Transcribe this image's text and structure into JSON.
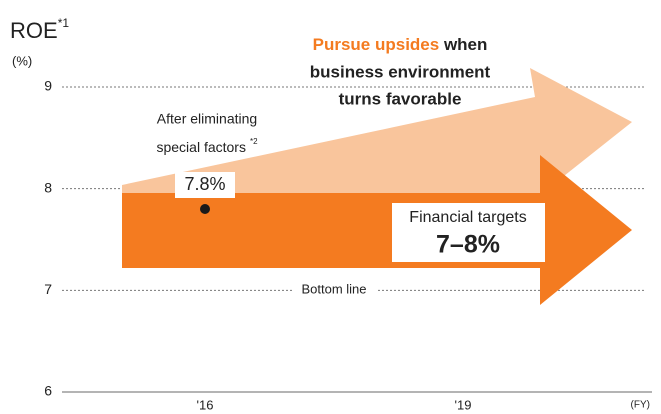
{
  "chart_data": {
    "type": "scatter",
    "title": "ROE",
    "title_note": "*1",
    "y_unit": "(%)",
    "x_unit": "(FY)",
    "categories": [
      "'16",
      "'19"
    ],
    "values": [
      7.8,
      null
    ],
    "value_labels": [
      "7.8%",
      null
    ],
    "color": "#1a1a1a",
    "ylim": [
      6,
      9
    ],
    "yticks": [
      6,
      7,
      8,
      9
    ],
    "grid": true,
    "annotations": {
      "special_factors": [
        "After eliminating",
        "special factors"
      ],
      "special_factors_note": "*2",
      "upside_highlight": "Pursue upsides",
      "upside_lines": [
        " when",
        "business environment",
        "turns favorable"
      ],
      "target_label": "Financial targets",
      "target_value": "7–8%",
      "bottom_line": "Bottom line"
    },
    "colors": {
      "target_arrow": "#f47b20",
      "upside_arrow": "#f9c59c"
    }
  }
}
